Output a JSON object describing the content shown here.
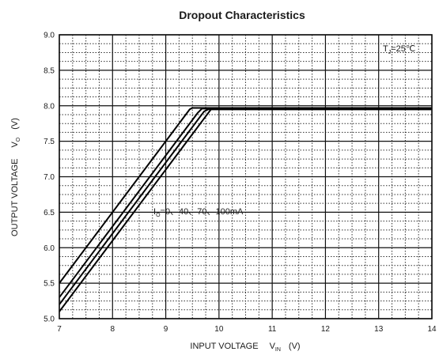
{
  "chart_data": {
    "type": "line",
    "title": "Dropout Characteristics",
    "xlabel": {
      "main": "INPUT VOLTAGE",
      "symbol": "V",
      "subscript": "IN",
      "unit": "(V)"
    },
    "ylabel": {
      "main": "OUTPUT VOLTAGE",
      "symbol": "V",
      "subscript": "O",
      "unit": "(V)"
    },
    "xlim": [
      7,
      14
    ],
    "ylim": [
      5.0,
      9.0
    ],
    "x_ticks": [
      7,
      8,
      9,
      10,
      11,
      12,
      13,
      14
    ],
    "x_tick_labels": [
      "7",
      "8",
      "9",
      "10",
      "11",
      "12",
      "13",
      "14"
    ],
    "y_ticks": [
      5.0,
      5.5,
      6.0,
      6.5,
      7.0,
      7.5,
      8.0,
      8.5,
      9.0
    ],
    "y_tick_labels": [
      "5.0",
      "5.5",
      "6.0",
      "6.5",
      "7.0",
      "7.5",
      "8.0",
      "8.5",
      "9.0"
    ],
    "grid": {
      "major": "solid",
      "minor": "dotted"
    },
    "annotations": {
      "temperature": {
        "prefix": "T",
        "subscript": "J",
        "suffix": "=25℃"
      },
      "current": {
        "prefix": "I",
        "subscript": "O",
        "suffix": "=0、40、70、100mA"
      }
    },
    "series": [
      {
        "x": [
          7.0,
          9.45,
          9.5,
          14.0
        ],
        "y": [
          5.5,
          7.95,
          7.97,
          7.97
        ]
      },
      {
        "x": [
          7.0,
          9.6,
          9.68,
          14.0
        ],
        "y": [
          5.3,
          7.9,
          7.96,
          7.96
        ]
      },
      {
        "x": [
          7.0,
          9.72,
          9.8,
          14.0
        ],
        "y": [
          5.2,
          7.92,
          7.95,
          7.95
        ]
      },
      {
        "x": [
          7.0,
          9.85,
          9.92,
          14.0
        ],
        "y": [
          5.1,
          7.95,
          7.95,
          7.95
        ]
      }
    ]
  }
}
